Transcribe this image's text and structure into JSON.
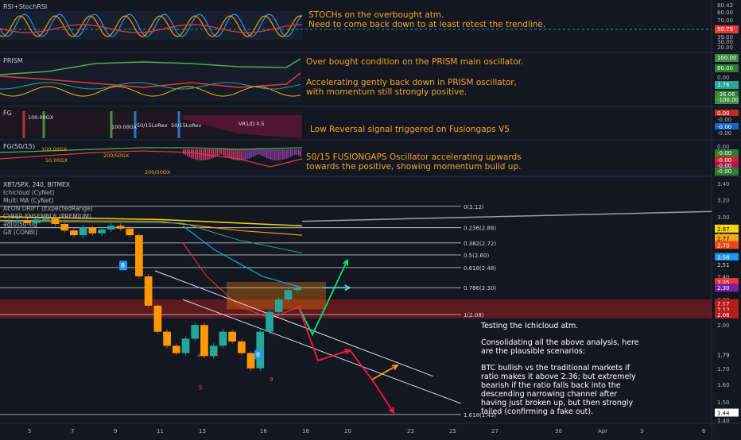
{
  "panes": {
    "rsi": {
      "label": "RSI+StochRSI",
      "ticks": [
        "80.42",
        "80.00",
        "70.00",
        "50.79",
        "39.00",
        "30.00",
        "20.00"
      ]
    },
    "prism": {
      "label": "PRISM",
      "ticks": [
        "100.00",
        "80.00",
        "2.76",
        "0.00",
        "-36.06",
        "-100.00"
      ]
    },
    "fg": {
      "label": "FG",
      "ticks": [
        "0.00",
        "-0.00",
        "-0.00",
        "-0.00"
      ],
      "signals": [
        "100.00GX",
        "100.00GX",
        "50/15LoRev",
        "50/15LoRev",
        "VR1/D 0.5"
      ]
    },
    "fg5015": {
      "label": "FG(50/15)",
      "ticks": [
        "0.00",
        "-0.00",
        "-0.00",
        "-0.00",
        "-0.00"
      ],
      "signals": [
        "100.00GX",
        "50.00GX",
        "200/50GX",
        "200/50DX"
      ]
    }
  },
  "main": {
    "legend": [
      "XBT/SPX, 240, BITMEX",
      "Ichicloud (CyNet)",
      "Multi MA (CyNet)",
      "AEON DRIFT (ExpectedRange)",
      "CYBER ENSEMBLE (PREMIUM)",
      "ag[0]50 sig",
      "G8 [CONBI]"
    ],
    "price_ticks": [
      "3.40",
      "3.20",
      "3.00",
      "2.80",
      "2.60",
      "2.40",
      "2.20",
      "2.00",
      "1.80",
      "1.70",
      "1.60",
      "1.50",
      "1.40"
    ],
    "price_tags": [
      {
        "text": "2.87",
        "color": "#f5d60a",
        "fg": "#000"
      },
      {
        "text": "2.77",
        "color": "#f5a623",
        "fg": "#000"
      },
      {
        "text": "2.70",
        "color": "#e64a19",
        "fg": "#fff"
      },
      {
        "text": "2.58",
        "color": "#2196f3",
        "fg": "#fff"
      },
      {
        "text": "2.51",
        "color": "#131722",
        "fg": "#ddd"
      },
      {
        "text": "2.35",
        "color": "#e53935",
        "fg": "#fff"
      },
      {
        "text": "2.30",
        "color": "#7b1fa2",
        "fg": "#fff"
      },
      {
        "text": "2.17",
        "color": "#b71c1c",
        "fg": "#fff"
      },
      {
        "text": "2.12",
        "color": "#b71c1c",
        "fg": "#fff"
      },
      {
        "text": "2.08",
        "color": "#b71c1c",
        "fg": "#fff"
      },
      {
        "text": "1.79",
        "color": "#131722",
        "fg": "#ddd"
      },
      {
        "text": "1.44",
        "color": "#ffffff",
        "fg": "#000"
      }
    ],
    "fib": [
      "0(3.12)",
      "0.236(2.88)",
      "0.382(2.72)",
      "0.5(2.60)",
      "0.618(2.48)",
      "0.786(2.30)",
      "1(2.08)",
      "1.618(1.43)"
    ],
    "x_ticks": [
      "5",
      "7",
      "9",
      "11",
      "13",
      "16",
      "18",
      "20",
      "23",
      "25",
      "27",
      "30",
      "Apr",
      "3",
      "6"
    ],
    "markers": [
      "8",
      "8"
    ],
    "stray_labels": [
      "4",
      "4",
      "5",
      "9"
    ]
  },
  "notes": {
    "rsi": "STOCHs on the overbought atm.\nNeed to come back down to at least retest the trendline.",
    "prism1": "Over bought condition on the PRISM main oscillator.",
    "prism2": "Accelerating gently back down in PRISM oscillator,\nwith momentum still strongly positive.",
    "fg": "Low Reversal signal triggered on Fusiongaps V5",
    "fg5015": "50/15 FUSIONGAPS Oscillator accelerating upwards\ntowards the positive, showing momentum build up."
  },
  "analysis": {
    "p1": "Testing the Ichicloud atm.",
    "p2": "Consolidating all the above analysis, here are the plausible scenarios:",
    "p3": "BTC bullish vs the traditional markets if ratio makes it above 2.36; but extremely bearish if the ratio falls back into the descending narrowing channel after having just broken up,  but then strongly failed (confirming a fake out)."
  },
  "chart_data": {
    "type": "line",
    "title": "XBT/SPX, 240, BITMEX",
    "xlabel": "",
    "ylabel": "",
    "x_ticks": [
      "5",
      "7",
      "9",
      "11",
      "13",
      "16",
      "18",
      "20",
      "23",
      "25",
      "27",
      "30",
      "Apr",
      "3",
      "6"
    ],
    "ylim": [
      1.4,
      3.45
    ],
    "series": [
      {
        "name": "XBT/SPX",
        "values": [
          2.95,
          2.96,
          2.93,
          2.97,
          2.98,
          2.92,
          2.85,
          2.8,
          2.88,
          2.82,
          2.86,
          2.9,
          2.87,
          2.8,
          2.4,
          2.15,
          1.95,
          1.85,
          1.8,
          1.9,
          2.0,
          1.78,
          1.85,
          1.95,
          1.88,
          1.8,
          1.7,
          1.95,
          2.1,
          2.2,
          2.28,
          2.3
        ]
      }
    ],
    "fib_levels": [
      {
        "label": "0",
        "value": 3.12
      },
      {
        "label": "0.236",
        "value": 2.88
      },
      {
        "label": "0.382",
        "value": 2.72
      },
      {
        "label": "0.5",
        "value": 2.6
      },
      {
        "label": "0.618",
        "value": 2.48
      },
      {
        "label": "0.786",
        "value": 2.3
      },
      {
        "label": "1",
        "value": 2.08
      },
      {
        "label": "1.618",
        "value": 1.43
      }
    ],
    "grid": false
  }
}
